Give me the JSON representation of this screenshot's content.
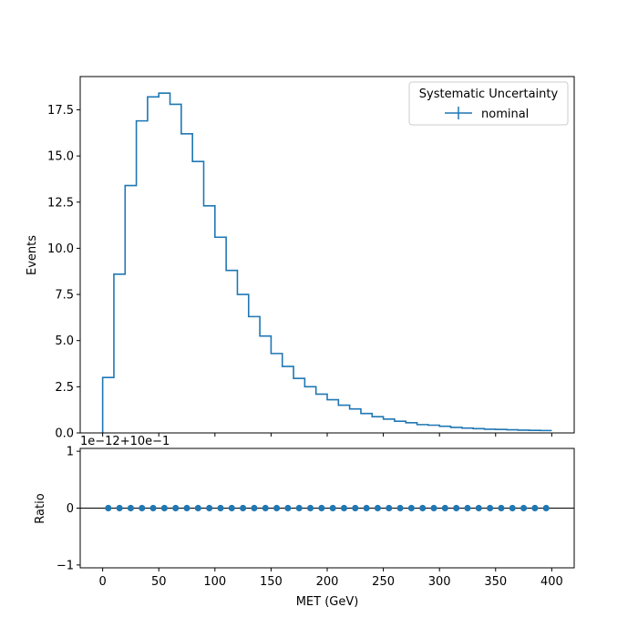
{
  "colors": {
    "series": "#1f77b4",
    "axis": "#000000",
    "background": "#ffffff",
    "legend_frame": "#cccccc",
    "reference_line": "#000000"
  },
  "chart_data": [
    {
      "type": "step",
      "panel": "top",
      "xlabel": "",
      "ylabel": "Events",
      "xlim": [
        -20,
        420
      ],
      "ylim": [
        0,
        19.3
      ],
      "grid": false,
      "legend": {
        "title": "Systematic Uncertainty",
        "placement": "upper-right",
        "entries": [
          "nominal"
        ]
      },
      "yticks": [
        "0.0",
        "2.5",
        "5.0",
        "7.5",
        "10.0",
        "12.5",
        "15.0",
        "17.5"
      ],
      "ytick_values": [
        0,
        2.5,
        5.0,
        7.5,
        10.0,
        12.5,
        15.0,
        17.5
      ],
      "bin_edges": [
        0,
        10,
        20,
        30,
        40,
        50,
        60,
        70,
        80,
        90,
        100,
        110,
        120,
        130,
        140,
        150,
        160,
        170,
        180,
        190,
        200,
        210,
        220,
        230,
        240,
        250,
        260,
        270,
        280,
        290,
        300,
        310,
        320,
        330,
        340,
        350,
        360,
        370,
        380,
        390,
        400
      ],
      "series": [
        {
          "name": "nominal",
          "values": [
            3.0,
            8.6,
            13.4,
            16.9,
            18.2,
            18.4,
            17.8,
            16.2,
            14.7,
            12.3,
            10.6,
            8.8,
            7.5,
            6.3,
            5.25,
            4.3,
            3.6,
            2.95,
            2.5,
            2.1,
            1.8,
            1.5,
            1.3,
            1.05,
            0.88,
            0.75,
            0.63,
            0.55,
            0.45,
            0.42,
            0.36,
            0.3,
            0.26,
            0.23,
            0.2,
            0.19,
            0.17,
            0.15,
            0.14,
            0.13
          ]
        }
      ]
    },
    {
      "type": "scatter",
      "panel": "bottom",
      "xlabel": "MET (GeV)",
      "ylabel": "Ratio",
      "xlim": [
        -20,
        420
      ],
      "ylim": [
        -1.05,
        1.05
      ],
      "offset_text": "1e−12+10e−1",
      "grid": false,
      "xticks": [
        "0",
        "50",
        "100",
        "150",
        "200",
        "250",
        "300",
        "350",
        "400"
      ],
      "xtick_values": [
        0,
        50,
        100,
        150,
        200,
        250,
        300,
        350,
        400
      ],
      "yticks": [
        "−1",
        "0",
        "1"
      ],
      "ytick_values": [
        -1,
        0,
        1
      ],
      "reference_line_y": 0,
      "series": [
        {
          "x": [
            5,
            15,
            25,
            35,
            45,
            55,
            65,
            75,
            85,
            95,
            105,
            115,
            125,
            135,
            145,
            155,
            165,
            175,
            185,
            195,
            205,
            215,
            225,
            235,
            245,
            255,
            265,
            275,
            285,
            295,
            305,
            315,
            325,
            335,
            345,
            355,
            365,
            375,
            385,
            395
          ],
          "y": [
            0,
            0,
            0,
            0,
            0,
            0,
            0,
            0,
            0,
            0,
            0,
            0,
            0,
            0,
            0,
            0,
            0,
            0,
            0,
            0,
            0,
            0,
            0,
            0,
            0,
            0,
            0,
            0,
            0,
            0,
            0,
            0,
            0,
            0,
            0,
            0,
            0,
            0,
            0,
            0
          ]
        }
      ]
    }
  ]
}
